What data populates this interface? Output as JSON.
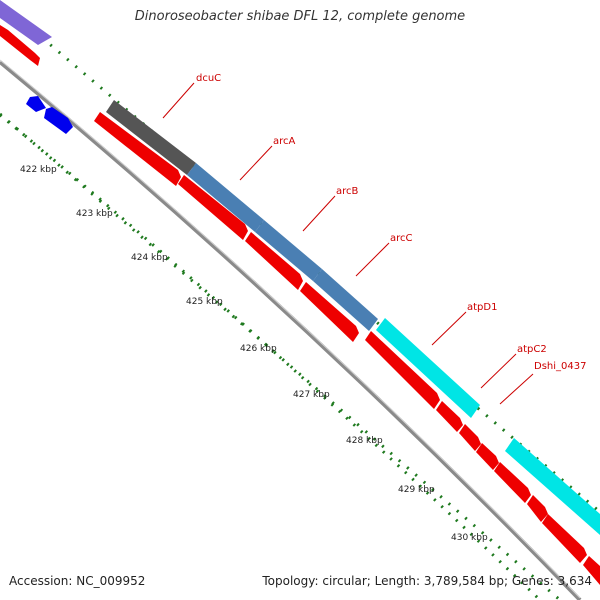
{
  "title": "Dinoroseobacter shibae DFL 12, complete genome",
  "footer": {
    "accession": "Accession: NC_009952",
    "summary": "Topology: circular; Length: 3,789,584 bp; Genes: 3,634"
  },
  "colors": {
    "backbone": "#8a8a8a",
    "tick": "#1f7a1f",
    "cds_forward_grey": "#555555",
    "cds_forward_steelblue": "#4a7fb3",
    "cds_forward_cyan": "#00e5e5",
    "cds_forward_purple": "#7f66d6",
    "cds_reverse_red": "#ee0000",
    "cds_reverse_blue": "#0000ee",
    "label_line": "#cc0000"
  },
  "scale_labels": [
    "422 kbp",
    "423 kbp",
    "424 kbp",
    "425 kbp",
    "426 kbp",
    "427 kbp",
    "428 kbp",
    "429 kbp",
    "430 kbp"
  ],
  "gene_labels": [
    "dcuC",
    "arcA",
    "arcB",
    "arcC",
    "atpD1",
    "atpC2",
    "Dshi_0437"
  ]
}
